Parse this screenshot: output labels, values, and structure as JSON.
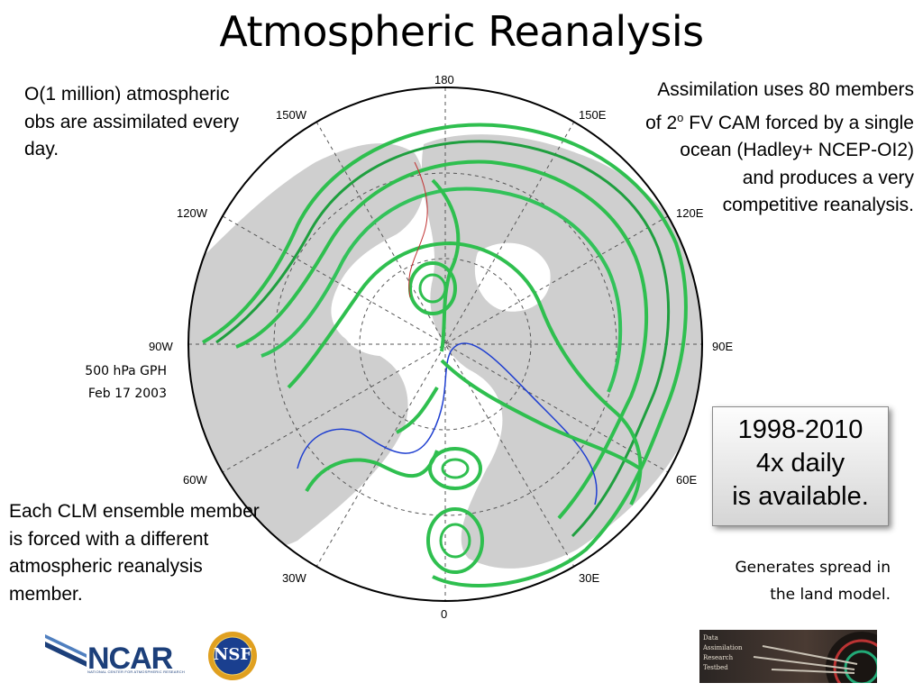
{
  "title": "Atmospheric Reanalysis",
  "left_top_text": "O(1 million) atmospheric obs are assimilated every day.",
  "right_top_text_a": "Assimilation uses 80 members of 2",
  "right_top_text_sup": "o",
  "right_top_text_b": " FV CAM forced by a single ocean (Hadley+ NCEP-OI2) and produces a very competitive reanalysis.",
  "gph_label": {
    "line1": "500 hPa GPH",
    "line2": "Feb 17 2003"
  },
  "availability_box": {
    "line1": "1998-2010",
    "line2": "4x daily",
    "line3": "is available."
  },
  "left_bottom_text": "Each CLM ensemble member is forced with a different atmospheric reanalysis member.",
  "spread_text": {
    "line1": "Generates spread in",
    "line2": "the land model."
  },
  "map_labels": {
    "n180": "180",
    "w150": "150W",
    "e150": "150E",
    "w120": "120W",
    "e120": "120E",
    "w90": "90W",
    "e90": "90E",
    "w60": "60W",
    "e60": "60E",
    "w30": "30W",
    "e30": "30E",
    "s0": "0"
  },
  "logos": {
    "ncar": "NCAR",
    "ncar_sub": "NATIONAL CENTER FOR ATMOSPHERIC RESEARCH",
    "nsf": "NSF",
    "dart": [
      "Data",
      "Assimilation",
      "Research",
      "Testbed"
    ]
  },
  "colors": {
    "land": "#cfcfcf",
    "contour_main": "#2fbf4f",
    "contour_accent": "#1f3fd0",
    "box_border": "#8a8a8a",
    "ncar_blue": "#1c3f7a"
  }
}
